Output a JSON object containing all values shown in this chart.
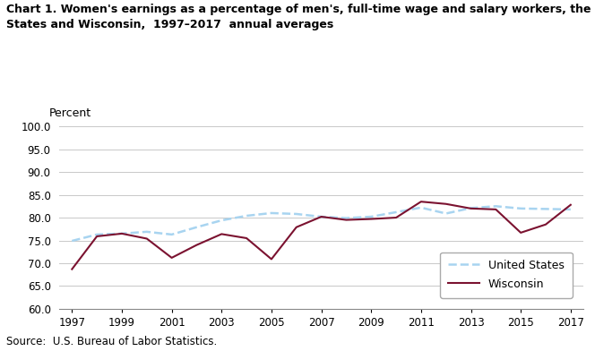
{
  "title_line1": "Chart 1. Women's earnings as a percentage of men's, full-time wage and salary workers, the United",
  "title_line2": "States and Wisconsin,  1997–2017  annual averages",
  "ylabel": "Percent",
  "source": "Source:  U.S. Bureau of Labor Statistics.",
  "years": [
    1997,
    1998,
    1999,
    2000,
    2001,
    2002,
    2003,
    2004,
    2005,
    2006,
    2007,
    2008,
    2009,
    2010,
    2011,
    2012,
    2013,
    2014,
    2015,
    2016,
    2017
  ],
  "us_data": [
    74.9,
    76.3,
    76.5,
    76.9,
    76.3,
    77.9,
    79.4,
    80.4,
    81.0,
    80.8,
    80.2,
    79.9,
    80.2,
    81.2,
    82.2,
    80.9,
    82.1,
    82.5,
    82.0,
    81.9,
    81.8
  ],
  "wi_data": [
    68.7,
    75.9,
    76.5,
    75.4,
    71.2,
    74.0,
    76.4,
    75.5,
    70.9,
    77.9,
    80.2,
    79.5,
    79.7,
    80.0,
    83.5,
    83.0,
    82.0,
    81.8,
    76.7,
    78.5,
    82.8
  ],
  "us_color": "#a8d4f0",
  "wi_color": "#7b1230",
  "ylim": [
    60.0,
    100.0
  ],
  "yticks": [
    60.0,
    65.0,
    70.0,
    75.0,
    80.0,
    85.0,
    90.0,
    95.0,
    100.0
  ],
  "xticks": [
    1997,
    1999,
    2001,
    2003,
    2005,
    2007,
    2009,
    2011,
    2013,
    2015,
    2017
  ],
  "xlim": [
    1996.5,
    2017.5
  ],
  "background_color": "#ffffff",
  "grid_color": "#c8c8c8",
  "title_fontsize": 9.0,
  "ylabel_fontsize": 9.0,
  "tick_fontsize": 8.5,
  "legend_fontsize": 9.0,
  "source_fontsize": 8.5
}
